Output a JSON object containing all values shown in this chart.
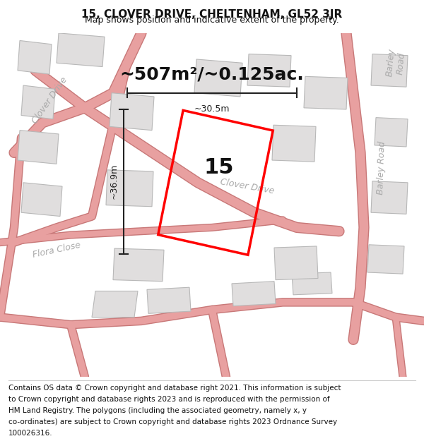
{
  "title": "15, CLOVER DRIVE, CHELTENHAM, GL52 3JR",
  "subtitle": "Map shows position and indicative extent of the property.",
  "area_text": "~507m²/~0.125ac.",
  "house_number": "15",
  "dim_width": "~30.5m",
  "dim_height": "~36.9m",
  "footer": "Contains OS data © Crown copyright and database right 2021. This information is subject to Crown copyright and database rights 2023 and is reproduced with the permission of HM Land Registry. The polygons (including the associated geometry, namely x, y co-ordinates) are subject to Crown copyright and database rights 2023 Ordnance Survey 100026316.",
  "bg_color": "#f5f5f5",
  "map_bg": "#f0eeee",
  "road_color": "#e8a0a0",
  "building_color": "#d8d8d8",
  "building_edge": "#b0b0b0",
  "plot_color": "#ff0000",
  "dim_color": "#222222",
  "road_label_color": "#aaaaaa",
  "title_color": "#111111",
  "footer_color": "#111111",
  "road_label_size": 9,
  "title_fontsize": 11,
  "subtitle_fontsize": 9,
  "area_fontsize": 18,
  "house_number_fontsize": 22,
  "footer_fontsize": 7.5
}
